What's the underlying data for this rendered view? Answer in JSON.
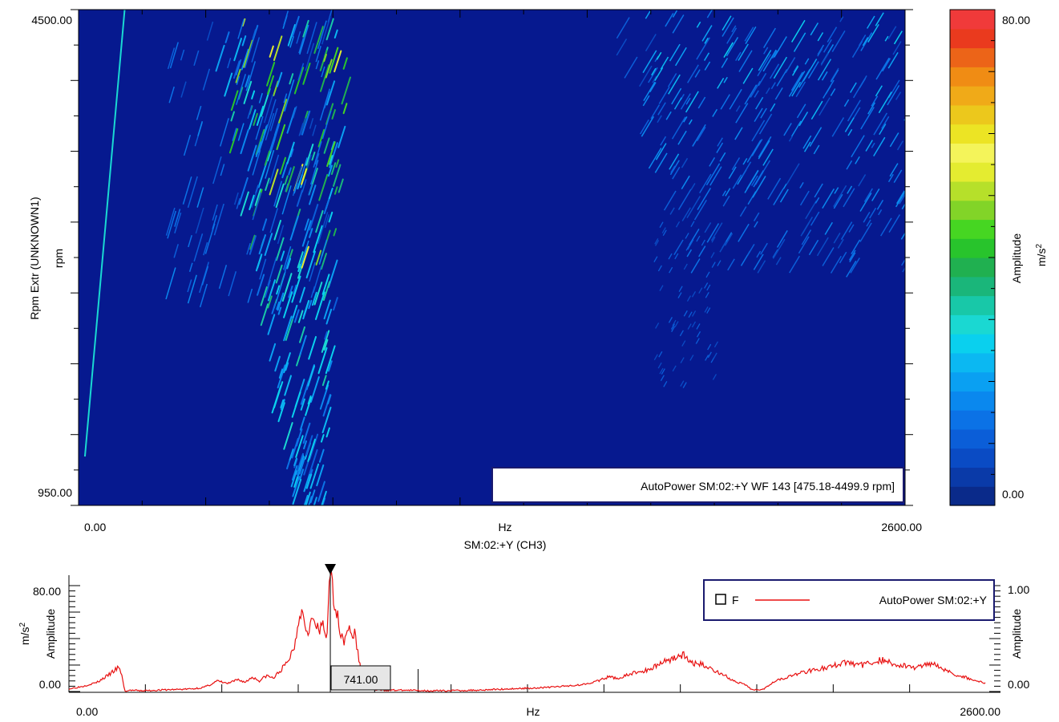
{
  "chart_data": [
    {
      "type": "heatmap",
      "title": "",
      "x_axis": {
        "min_label": "0.00",
        "max_label": "2600.00",
        "unit": "Hz",
        "label": "SM:02:+Y (CH3)",
        "range": [
          0,
          2600
        ]
      },
      "y_axis": {
        "min_label": "950.00",
        "max_label": "4500.00",
        "unit": "rpm",
        "label": "Rpm Extr (UNKNOWN1)",
        "range": [
          950,
          4500
        ]
      },
      "colorbar": {
        "label": "Amplitude",
        "unit_base": "m/s",
        "unit_exp": "2",
        "min_label": "0.00",
        "max_label": "80.00",
        "range": [
          0,
          80
        ],
        "colors": [
          "#0a2a8a",
          "#0a3aa8",
          "#0a4bc4",
          "#0b5ed8",
          "#0b72e6",
          "#0a88ee",
          "#0aa0f2",
          "#0bb8f2",
          "#0ad0ee",
          "#1ad8d2",
          "#18c8a8",
          "#1ab67a",
          "#20b050",
          "#28c42c",
          "#46d622",
          "#82d428",
          "#b6e02a",
          "#e4ec30",
          "#f4f45a",
          "#ece424",
          "#ecc81c",
          "#f0aa18",
          "#f08c14",
          "#ec6418",
          "#ea3a1e",
          "#f03a3a"
        ]
      },
      "legend_text": "AutoPower SM:02:+Y WF 143 [475.18-4499.9 rpm]",
      "note": "Campbell/waterfall map: dominant energy band between ~650-800 Hz rising with rpm, weaker diagonal order lines at 1800-2600 Hz, one thin order line near 100 Hz."
    },
    {
      "type": "line",
      "x_axis": {
        "min_label": "0.00",
        "max_label": "2600.00",
        "unit": "Hz",
        "range": [
          0,
          2600
        ]
      },
      "y_axis_left": {
        "min_label": "0.00",
        "max_label": "80.00",
        "label": "Amplitude",
        "unit_base": "m/s",
        "unit_exp": "2",
        "range": [
          0,
          80
        ]
      },
      "y_axis_right": {
        "min_label": "0.00",
        "max_label": "1.00",
        "label": "Amplitude",
        "range": [
          0,
          1
        ]
      },
      "cursor": {
        "x": 741,
        "label": "741.00"
      },
      "legend": {
        "marker": "F",
        "series_name": "AutoPower SM:02:+Y"
      },
      "series": [
        {
          "name": "AutoPower SM:02:+Y",
          "color": "#e81010",
          "points": [
            [
              0,
              2
            ],
            [
              40,
              4
            ],
            [
              80,
              7
            ],
            [
              110,
              12
            ],
            [
              140,
              18
            ],
            [
              150,
              13
            ],
            [
              158,
              0
            ],
            [
              175,
              1
            ],
            [
              200,
              0.5
            ],
            [
              250,
              1
            ],
            [
              300,
              1.5
            ],
            [
              350,
              2
            ],
            [
              380,
              3
            ],
            [
              400,
              5
            ],
            [
              420,
              8
            ],
            [
              450,
              6
            ],
            [
              480,
              9
            ],
            [
              500,
              7
            ],
            [
              520,
              11
            ],
            [
              540,
              8
            ],
            [
              560,
              12
            ],
            [
              580,
              10
            ],
            [
              600,
              16
            ],
            [
              620,
              22
            ],
            [
              640,
              35
            ],
            [
              655,
              62
            ],
            [
              665,
              58
            ],
            [
              675,
              46
            ],
            [
              690,
              54
            ],
            [
              700,
              50
            ],
            [
              710,
              44
            ],
            [
              720,
              52
            ],
            [
              730,
              40
            ],
            [
              741,
              88
            ],
            [
              750,
              74
            ],
            [
              760,
              58
            ],
            [
              770,
              46
            ],
            [
              780,
              38
            ],
            [
              790,
              50
            ],
            [
              800,
              42
            ],
            [
              810,
              44
            ],
            [
              820,
              28
            ],
            [
              830,
              12
            ],
            [
              840,
              4
            ],
            [
              870,
              1
            ],
            [
              950,
              1
            ],
            [
              1050,
              0.5
            ],
            [
              1150,
              1
            ],
            [
              1250,
              2
            ],
            [
              1350,
              3
            ],
            [
              1450,
              5
            ],
            [
              1500,
              8
            ],
            [
              1530,
              11
            ],
            [
              1560,
              10
            ],
            [
              1600,
              14
            ],
            [
              1640,
              16
            ],
            [
              1680,
              22
            ],
            [
              1720,
              26
            ],
            [
              1740,
              28
            ],
            [
              1760,
              22
            ],
            [
              1800,
              20
            ],
            [
              1830,
              16
            ],
            [
              1860,
              12
            ],
            [
              1890,
              7
            ],
            [
              1910,
              6
            ],
            [
              1940,
              1
            ],
            [
              1970,
              2
            ],
            [
              2000,
              8
            ],
            [
              2050,
              12
            ],
            [
              2100,
              16
            ],
            [
              2150,
              18
            ],
            [
              2200,
              22
            ],
            [
              2250,
              20
            ],
            [
              2300,
              24
            ],
            [
              2350,
              20
            ],
            [
              2400,
              18
            ],
            [
              2450,
              22
            ],
            [
              2500,
              14
            ],
            [
              2550,
              10
            ],
            [
              2600,
              6
            ]
          ]
        }
      ]
    }
  ]
}
